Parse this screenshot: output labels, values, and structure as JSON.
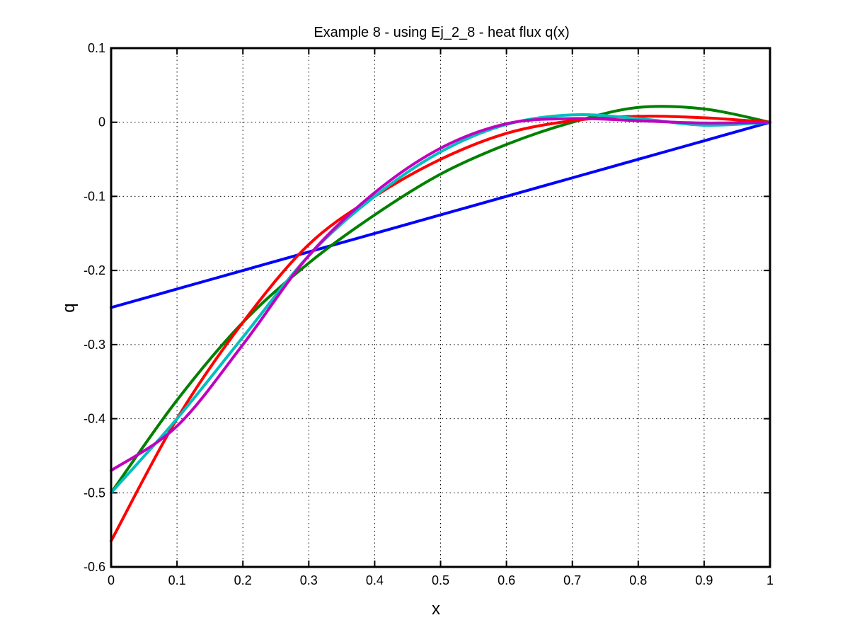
{
  "chart_data": {
    "type": "line",
    "title": "Example 8 - using Ej_2_8 - heat flux q(x)",
    "xlabel": "x",
    "ylabel": "q",
    "xlim": [
      0,
      1
    ],
    "ylim": [
      -0.6,
      0.1
    ],
    "xticks": [
      0,
      0.1,
      0.2,
      0.3,
      0.4,
      0.5,
      0.6,
      0.7,
      0.8,
      0.9,
      1
    ],
    "xtick_labels": [
      "0",
      "0.1",
      "0.2",
      "0.3",
      "0.4",
      "0.5",
      "0.6",
      "0.7",
      "0.8",
      "0.9",
      "1"
    ],
    "yticks": [
      0.1,
      0,
      -0.1,
      -0.2,
      -0.3,
      -0.4,
      -0.5,
      -0.6
    ],
    "ytick_labels": [
      "0.1",
      "0",
      "-0.1",
      "-0.2",
      "-0.3",
      "-0.4",
      "-0.5",
      "-0.6"
    ],
    "grid": true,
    "x": [
      0,
      0.1,
      0.2,
      0.3,
      0.4,
      0.5,
      0.6,
      0.7,
      0.8,
      0.9,
      1
    ],
    "series": [
      {
        "color": "#0000ff",
        "values": [
          -0.25,
          -0.225,
          -0.2,
          -0.175,
          -0.15,
          -0.125,
          -0.1,
          -0.075,
          -0.05,
          -0.025,
          0
        ]
      },
      {
        "color": "#008000",
        "values": [
          -0.5,
          -0.375,
          -0.27,
          -0.19,
          -0.125,
          -0.07,
          -0.03,
          0.0,
          0.02,
          0.018,
          0
        ]
      },
      {
        "color": "#ff0000",
        "values": [
          -0.565,
          -0.4,
          -0.27,
          -0.165,
          -0.1,
          -0.05,
          -0.015,
          0.002,
          0.008,
          0.006,
          0
        ]
      },
      {
        "color": "#00bfbf",
        "values": [
          -0.5,
          -0.4,
          -0.29,
          -0.18,
          -0.1,
          -0.04,
          -0.003,
          0.01,
          0.005,
          -0.004,
          0
        ]
      },
      {
        "color": "#bf00bf",
        "values": [
          -0.47,
          -0.41,
          -0.3,
          -0.18,
          -0.095,
          -0.035,
          -0.002,
          0.005,
          0.002,
          -0.001,
          0
        ]
      }
    ]
  }
}
